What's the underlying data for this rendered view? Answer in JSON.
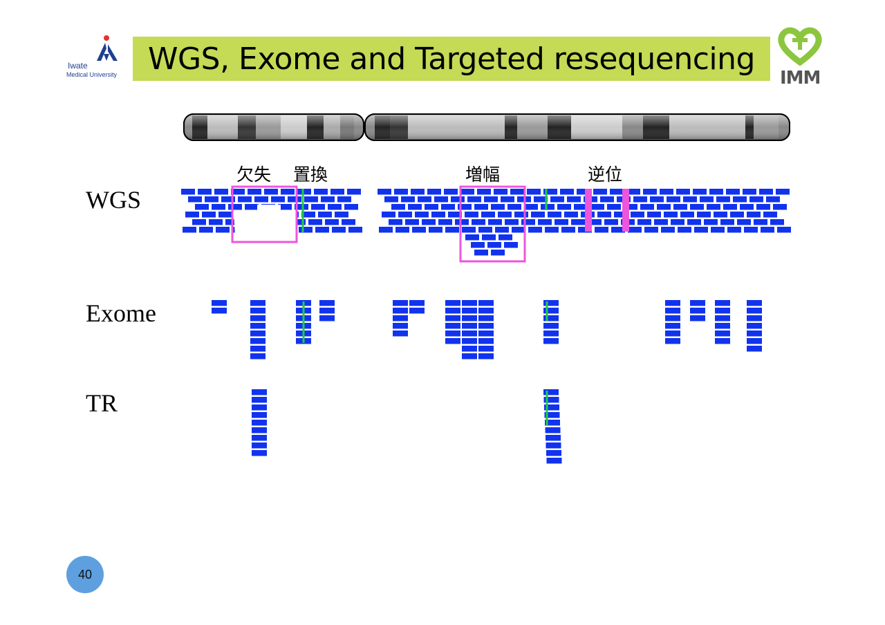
{
  "slide": {
    "title": "WGS, Exome and Targeted resequencing",
    "page_number": "40"
  },
  "logos": {
    "left_line1": "Iwate",
    "left_line2": "Medical University",
    "right_text": "IMM"
  },
  "rows": {
    "wgs": "WGS",
    "exome": "Exome",
    "tr": "TR"
  },
  "annotations": {
    "deletion": "欠失",
    "substitution": "置換",
    "amplification": "増幅",
    "inversion": "逆位"
  },
  "colors": {
    "title_bar": "#c5da55",
    "read": "#1133ee",
    "variant": "#22cc44",
    "highlight": "#ee55dd",
    "page_badge": "#5e9fe0"
  }
}
